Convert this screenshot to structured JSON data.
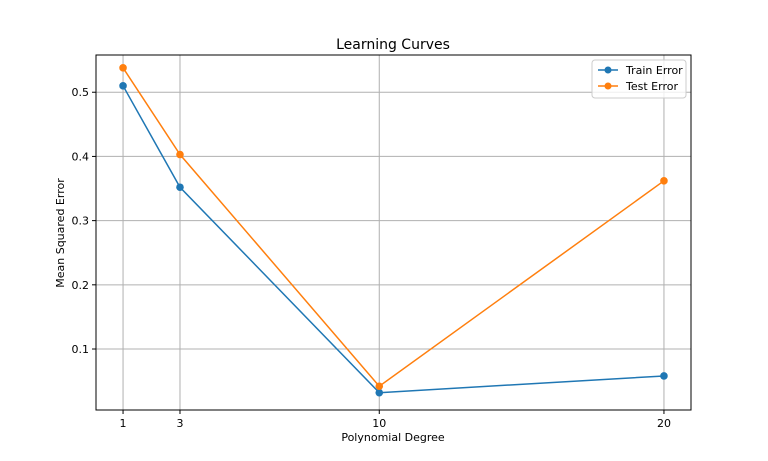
{
  "chart_data": {
    "type": "line",
    "title": "Learning Curves",
    "xlabel": "Polynomial Degree",
    "ylabel": "Mean Squared Error",
    "x": [
      1,
      3,
      10,
      20
    ],
    "xticks": [
      "1",
      "3",
      "10",
      "20"
    ],
    "yticks": [
      "0.1",
      "0.2",
      "0.3",
      "0.4",
      "0.5"
    ],
    "xlim": [
      0.05,
      20.95
    ],
    "ylim": [
      0.005,
      0.558
    ],
    "grid": true,
    "legend_position": "top-right",
    "series": [
      {
        "name": "Train Error",
        "color": "#1f77b4",
        "values": [
          0.51,
          0.352,
          0.032,
          0.058
        ]
      },
      {
        "name": "Test Error",
        "color": "#ff7f0e",
        "values": [
          0.538,
          0.403,
          0.042,
          0.362
        ]
      }
    ]
  }
}
